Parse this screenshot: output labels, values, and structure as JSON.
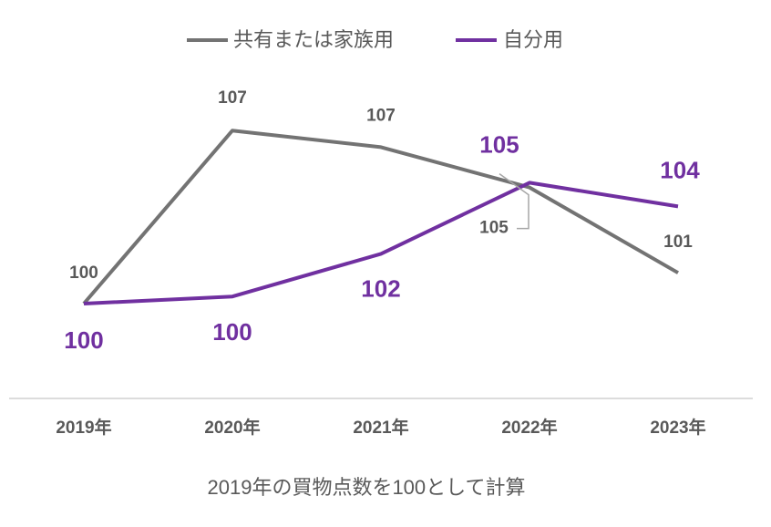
{
  "chart_data": {
    "type": "line",
    "categories": [
      "2019年",
      "2020年",
      "2021年",
      "2022年",
      "2023年"
    ],
    "series": [
      {
        "name": "共有または家族用",
        "color": "#737373",
        "values": [
          100,
          107.3,
          106.6,
          104.9,
          101.3
        ],
        "value_labels": [
          "100",
          "107",
          "107",
          "105",
          "101"
        ]
      },
      {
        "name": "自分用",
        "color": "#7030a0",
        "values": [
          100,
          100.3,
          102.1,
          105.1,
          104.1
        ],
        "value_labels": [
          "100",
          "100",
          "102",
          "105",
          "104"
        ]
      }
    ],
    "ylim": [
      96,
      111
    ],
    "legend": "top",
    "footnote": "2019年の買物点数を100として計算"
  }
}
